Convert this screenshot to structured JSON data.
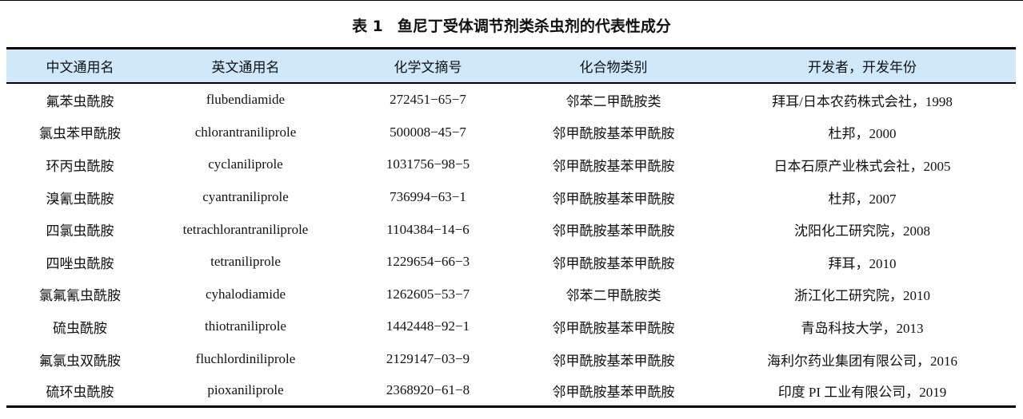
{
  "title": {
    "number": "表 1",
    "text": "鱼尼丁受体调节剂类杀虫剂的代表性成分"
  },
  "table": {
    "header_bg": "#cfe9fb",
    "columns": [
      "中文通用名",
      "英文通用名",
      "化学文摘号",
      "化合物类别",
      "开发者，开发年份"
    ],
    "rows": [
      [
        "氟苯虫酰胺",
        "flubendiamide",
        "272451−65−7",
        "邻苯二甲酰胺类",
        "拜耳/日本农药株式会社，1998"
      ],
      [
        "氯虫苯甲酰胺",
        "chlorantraniliprole",
        "500008−45−7",
        "邻甲酰胺基苯甲酰胺",
        "杜邦，2000"
      ],
      [
        "环丙虫酰胺",
        "cyclaniliprole",
        "1031756−98−5",
        "邻甲酰胺基苯甲酰胺",
        "日本石原产业株式会社，2005"
      ],
      [
        "溴氰虫酰胺",
        "cyantraniliprole",
        "736994−63−1",
        "邻甲酰胺基苯甲酰胺",
        "杜邦，2007"
      ],
      [
        "四氯虫酰胺",
        "tetrachlorantraniliprole",
        "1104384−14−6",
        "邻甲酰胺基苯甲酰胺",
        "沈阳化工研究院，2008"
      ],
      [
        "四唑虫酰胺",
        "tetraniliprole",
        "1229654−66−3",
        "邻甲酰胺基苯甲酰胺",
        "拜耳，2010"
      ],
      [
        "氯氟氰虫酰胺",
        "cyhalodiamide",
        "1262605−53−7",
        "邻苯二甲酰胺类",
        "浙江化工研究院，2010"
      ],
      [
        "硫虫酰胺",
        "thiotraniliprole",
        "1442448−92−1",
        "邻甲酰胺基苯甲酰胺",
        "青岛科技大学，2013"
      ],
      [
        "氟氯虫双酰胺",
        "fluchlordiniliprole",
        "2129147−03−9",
        "邻甲酰胺基苯甲酰胺",
        "海利尔药业集团有限公司，2016"
      ],
      [
        "硫环虫酰胺",
        "pioxaniliprole",
        "2368920−61−8",
        "邻甲酰胺基苯甲酰胺",
        "印度 PI 工业有限公司，2019"
      ]
    ]
  }
}
